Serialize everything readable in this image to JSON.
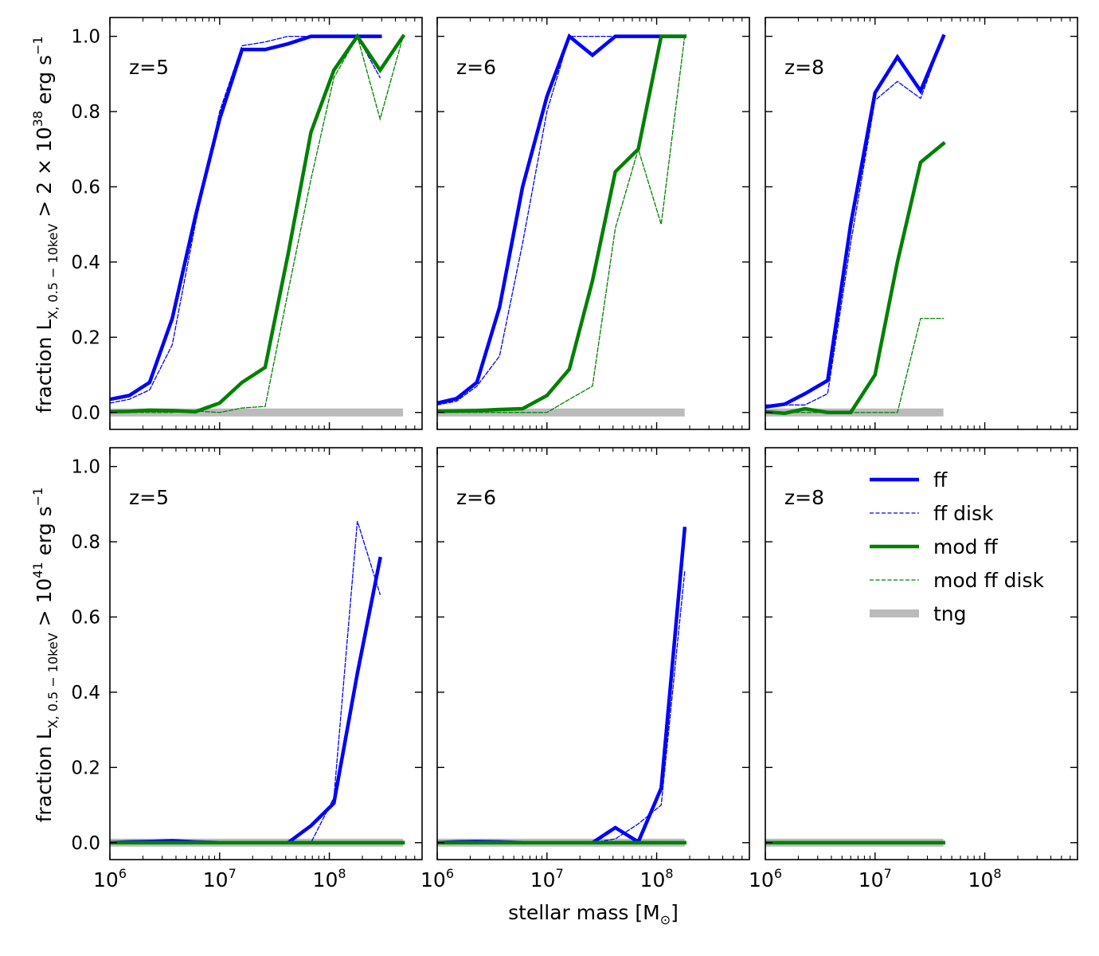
{
  "figure": {
    "xlabel": "stellar mass [M",
    "xlabel_sub": "⊙",
    "xlabel_end": "]",
    "ylabel_top": {
      "pre": "fraction L",
      "sub": "X, 0.5 − 10keV",
      "mid": " > 2 × 10",
      "sup": "38",
      "post": " erg s",
      "sup2": "−1"
    },
    "ylabel_bottom": {
      "pre": "fraction L",
      "sub": "X, 0.5 − 10keV",
      "mid": " > 10",
      "sup": "41",
      "post": " erg s",
      "sup2": "−1"
    },
    "y_ticks": [
      "0.0",
      "0.2",
      "0.4",
      "0.6",
      "0.8",
      "1.0"
    ],
    "x_ticks": [
      {
        "base": "10",
        "exp": "6"
      },
      {
        "base": "10",
        "exp": "7"
      },
      {
        "base": "10",
        "exp": "8"
      }
    ]
  },
  "legend": {
    "placement": "upper-right of bottom-right panel",
    "entries": [
      {
        "label": "ff",
        "color": "#0000ff",
        "style": "thick-solid"
      },
      {
        "label": "ff disk",
        "color": "#0000ff",
        "style": "thin-dashed"
      },
      {
        "label": "mod ff",
        "color": "#008000",
        "style": "thick-solid"
      },
      {
        "label": "mod ff disk",
        "color": "#008000",
        "style": "thin-dashed"
      },
      {
        "label": "tng",
        "color": "#bbbbbb",
        "style": "wide-solid"
      }
    ]
  },
  "chart_data": [
    {
      "type": "line",
      "panel": "top-left",
      "annotation": "z=5",
      "x_scale": "log",
      "xlim": [
        1000000.0,
        700000000.0
      ],
      "ylim": [
        -0.045,
        1.05
      ],
      "grid": false,
      "series": [
        {
          "name": "ff",
          "x": [
            1000000.0,
            1500000.0,
            2300000.0,
            3700000.0,
            6000000.0,
            10000000.0,
            16000000.0,
            26000000.0,
            42000000.0,
            68000000.0,
            110000000.0,
            180000000.0,
            290000000.0
          ],
          "y": [
            0.035,
            0.045,
            0.08,
            0.25,
            0.52,
            0.78,
            0.965,
            0.965,
            0.98,
            1,
            1,
            1,
            1
          ]
        },
        {
          "name": "ff disk",
          "x": [
            1000000.0,
            1500000.0,
            2300000.0,
            3700000.0,
            6000000.0,
            10000000.0,
            16000000.0,
            26000000.0,
            42000000.0,
            68000000.0,
            110000000.0,
            180000000.0,
            290000000.0
          ],
          "y": [
            0.025,
            0.035,
            0.06,
            0.18,
            0.5,
            0.8,
            0.975,
            0.985,
            1,
            1,
            1,
            1,
            0.89
          ]
        },
        {
          "name": "mod ff",
          "x": [
            1000000.0,
            1500000.0,
            2300000.0,
            3700000.0,
            6000000.0,
            10000000.0,
            16000000.0,
            26000000.0,
            42000000.0,
            68000000.0,
            110000000.0,
            180000000.0,
            290000000.0,
            470000000.0
          ],
          "y": [
            0.002,
            0.003,
            0.006,
            0.005,
            0.002,
            0.025,
            0.08,
            0.12,
            0.42,
            0.745,
            0.91,
            1,
            0.91,
            1
          ]
        },
        {
          "name": "mod ff disk",
          "x": [
            1000000.0,
            1500000.0,
            2300000.0,
            3700000.0,
            6000000.0,
            10000000.0,
            16000000.0,
            26000000.0,
            42000000.0,
            68000000.0,
            110000000.0,
            180000000.0,
            290000000.0,
            470000000.0
          ],
          "y": [
            0,
            0,
            0,
            0,
            0.004,
            0,
            0.012,
            0.016,
            0.32,
            0.62,
            0.89,
            1,
            0.78,
            1
          ]
        },
        {
          "name": "tng",
          "x": [
            1000000.0,
            470000000.0
          ],
          "y": [
            0,
            0
          ]
        }
      ]
    },
    {
      "type": "line",
      "panel": "top-middle",
      "annotation": "z=6",
      "x_scale": "log",
      "xlim": [
        1000000.0,
        700000000.0
      ],
      "ylim": [
        -0.045,
        1.05
      ],
      "grid": false,
      "series": [
        {
          "name": "ff",
          "x": [
            1000000.0,
            1500000.0,
            2300000.0,
            3700000.0,
            6000000.0,
            10000000.0,
            16000000.0,
            26000000.0,
            42000000.0,
            68000000.0,
            110000000.0,
            180000000.0
          ],
          "y": [
            0.025,
            0.037,
            0.08,
            0.28,
            0.6,
            0.84,
            1,
            0.95,
            1,
            1,
            1,
            1
          ]
        },
        {
          "name": "ff disk",
          "x": [
            1000000.0,
            1500000.0,
            2300000.0,
            3700000.0,
            6000000.0,
            10000000.0,
            16000000.0,
            26000000.0,
            42000000.0,
            68000000.0,
            110000000.0,
            180000000.0
          ],
          "y": [
            0.02,
            0.03,
            0.07,
            0.15,
            0.45,
            0.8,
            1,
            1,
            1,
            1,
            1,
            1
          ]
        },
        {
          "name": "mod ff",
          "x": [
            1000000.0,
            1500000.0,
            2300000.0,
            3700000.0,
            6000000.0,
            10000000.0,
            16000000.0,
            26000000.0,
            42000000.0,
            68000000.0,
            110000000.0,
            180000000.0
          ],
          "y": [
            0.003,
            0.004,
            0.005,
            0.008,
            0.01,
            0.045,
            0.115,
            0.35,
            0.64,
            0.7,
            1,
            1
          ]
        },
        {
          "name": "mod ff disk",
          "x": [
            1000000.0,
            1500000.0,
            2300000.0,
            3700000.0,
            6000000.0,
            10000000.0,
            16000000.0,
            26000000.0,
            42000000.0,
            68000000.0,
            110000000.0,
            180000000.0
          ],
          "y": [
            0,
            0,
            0,
            0,
            0,
            0,
            0.035,
            0.07,
            0.49,
            0.7,
            0.5,
            1
          ]
        },
        {
          "name": "tng",
          "x": [
            1000000.0,
            180000000.0
          ],
          "y": [
            0,
            0
          ]
        }
      ]
    },
    {
      "type": "line",
      "panel": "top-right",
      "annotation": "z=8",
      "x_scale": "log",
      "xlim": [
        1000000.0,
        700000000.0
      ],
      "ylim": [
        -0.045,
        1.05
      ],
      "grid": false,
      "series": [
        {
          "name": "ff",
          "x": [
            1000000.0,
            1500000.0,
            2300000.0,
            3700000.0,
            6000000.0,
            10000000.0,
            16000000.0,
            26000000.0,
            42000000.0
          ],
          "y": [
            0.015,
            0.022,
            0.05,
            0.085,
            0.5,
            0.85,
            0.945,
            0.855,
            1
          ]
        },
        {
          "name": "ff disk",
          "x": [
            1000000.0,
            1500000.0,
            2300000.0,
            3700000.0,
            6000000.0,
            10000000.0,
            16000000.0,
            26000000.0,
            42000000.0
          ],
          "y": [
            0.02,
            0.02,
            0.02,
            0.05,
            0.45,
            0.83,
            0.88,
            0.835,
            1
          ]
        },
        {
          "name": "mod ff",
          "x": [
            1000000.0,
            1500000.0,
            2300000.0,
            3700000.0,
            6000000.0,
            10000000.0,
            16000000.0,
            26000000.0,
            42000000.0
          ],
          "y": [
            0.002,
            -0.002,
            0.01,
            0,
            0,
            0.1,
            0.4,
            0.665,
            0.715
          ]
        },
        {
          "name": "mod ff disk",
          "x": [
            1000000.0,
            1500000.0,
            2300000.0,
            3700000.0,
            6000000.0,
            10000000.0,
            16000000.0,
            26000000.0,
            42000000.0
          ],
          "y": [
            0,
            0,
            0,
            0,
            0,
            0,
            0,
            0.25,
            0.25
          ]
        },
        {
          "name": "tng",
          "x": [
            1000000.0,
            42000000.0
          ],
          "y": [
            0,
            0
          ]
        }
      ]
    },
    {
      "type": "line",
      "panel": "bottom-left",
      "annotation": "z=5",
      "x_scale": "log",
      "xlim": [
        1000000.0,
        700000000.0
      ],
      "ylim": [
        -0.045,
        1.05
      ],
      "grid": false,
      "series": [
        {
          "name": "ff",
          "x": [
            1000000.0,
            1500000.0,
            2300000.0,
            3700000.0,
            6000000.0,
            10000000.0,
            16000000.0,
            26000000.0,
            42000000.0,
            68000000.0,
            110000000.0,
            180000000.0,
            290000000.0
          ],
          "y": [
            0,
            0.002,
            0.003,
            0.005,
            0.002,
            0,
            0,
            0,
            0,
            0.045,
            0.105,
            0.45,
            0.755
          ]
        },
        {
          "name": "ff disk",
          "x": [
            1000000.0,
            1500000.0,
            2300000.0,
            3700000.0,
            6000000.0,
            10000000.0,
            16000000.0,
            26000000.0,
            42000000.0,
            68000000.0,
            110000000.0,
            180000000.0,
            290000000.0
          ],
          "y": [
            0,
            0,
            0,
            0,
            0,
            0,
            0,
            0,
            0,
            0,
            0.12,
            0.855,
            0.66
          ]
        },
        {
          "name": "mod ff",
          "x": [
            1000000.0,
            470000000.0
          ],
          "y": [
            0,
            0
          ]
        },
        {
          "name": "mod ff disk",
          "x": [
            1000000.0,
            470000000.0
          ],
          "y": [
            0,
            0
          ]
        },
        {
          "name": "tng",
          "x": [
            1000000.0,
            470000000.0
          ],
          "y": [
            0,
            0
          ]
        }
      ]
    },
    {
      "type": "line",
      "panel": "bottom-middle",
      "annotation": "z=6",
      "x_scale": "log",
      "xlim": [
        1000000.0,
        700000000.0
      ],
      "ylim": [
        -0.045,
        1.05
      ],
      "grid": false,
      "series": [
        {
          "name": "ff",
          "x": [
            1000000.0,
            1500000.0,
            2300000.0,
            3700000.0,
            6000000.0,
            10000000.0,
            16000000.0,
            26000000.0,
            42000000.0,
            68000000.0,
            110000000.0,
            180000000.0
          ],
          "y": [
            0,
            0.002,
            0.003,
            0.002,
            0,
            0,
            0,
            0,
            0.04,
            0.002,
            0.145,
            0.835
          ]
        },
        {
          "name": "ff disk",
          "x": [
            1000000.0,
            1500000.0,
            2300000.0,
            3700000.0,
            6000000.0,
            10000000.0,
            16000000.0,
            26000000.0,
            42000000.0,
            68000000.0,
            110000000.0,
            180000000.0
          ],
          "y": [
            0,
            0,
            0,
            0,
            0,
            0,
            0,
            0,
            0.01,
            0.05,
            0.1,
            0.72
          ]
        },
        {
          "name": "mod ff",
          "x": [
            1000000.0,
            180000000.0
          ],
          "y": [
            0,
            0
          ]
        },
        {
          "name": "mod ff disk",
          "x": [
            1000000.0,
            180000000.0
          ],
          "y": [
            0,
            0
          ]
        },
        {
          "name": "tng",
          "x": [
            1000000.0,
            180000000.0
          ],
          "y": [
            0,
            0
          ]
        }
      ]
    },
    {
      "type": "line",
      "panel": "bottom-right",
      "annotation": "z=8",
      "x_scale": "log",
      "xlim": [
        1000000.0,
        700000000.0
      ],
      "ylim": [
        -0.045,
        1.05
      ],
      "grid": false,
      "series": [
        {
          "name": "ff",
          "x": [
            1000000.0,
            42000000.0
          ],
          "y": [
            0,
            0
          ]
        },
        {
          "name": "ff disk",
          "x": [
            1000000.0,
            42000000.0
          ],
          "y": [
            0,
            0
          ]
        },
        {
          "name": "mod ff",
          "x": [
            1000000.0,
            42000000.0
          ],
          "y": [
            0,
            0
          ]
        },
        {
          "name": "mod ff disk",
          "x": [
            1000000.0,
            42000000.0
          ],
          "y": [
            0,
            0
          ]
        },
        {
          "name": "tng",
          "x": [
            1000000.0,
            42000000.0
          ],
          "y": [
            0,
            0
          ]
        }
      ]
    }
  ]
}
